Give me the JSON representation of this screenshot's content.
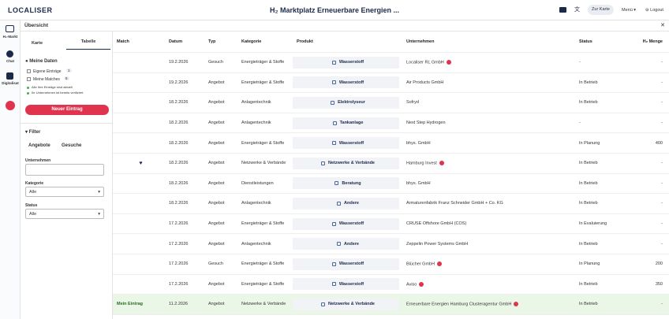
{
  "header": {
    "logo": "LOCALISER",
    "title": "H₂ Marktplatz Erneuerbare Energien ...",
    "map_button": "Zur Karte",
    "menu": "Menü ▾",
    "logout": "Logout"
  },
  "subheader": {
    "title": "Übersicht",
    "close": "✕"
  },
  "rail": [
    "H₂-Markt",
    "Chat",
    "Digitalisat"
  ],
  "panel": {
    "tabs": [
      "Karte",
      "Tabelle"
    ],
    "my_data": "Meine Daten",
    "checks": [
      {
        "label": "Eigene Einträge",
        "count": "1"
      },
      {
        "label": "Meine Matches",
        "count": "5"
      }
    ],
    "notes": [
      "Alle Ihre Einträge sind aktuell",
      "Ihr Unternehmen ist bereits verifiziert"
    ],
    "new_button": "Neuer Eintrag",
    "filter": "Filter",
    "filter_tabs": [
      "Angebote",
      "Gesuche"
    ],
    "company_label": "Unternehmen",
    "category_label": "Kategorie",
    "category_value": "Alle",
    "status_label": "Status",
    "status_value": "Alle"
  },
  "table": {
    "columns": [
      "Match",
      "Datum",
      "Typ",
      "Kategorie",
      "Produkt",
      "Unternehmen",
      "Status",
      "H₂ Menge"
    ],
    "rows": [
      {
        "match": "",
        "date": "19.2.2026",
        "type": "Gesuch",
        "category": "Energieträger & Stoffe",
        "product": "Wasserstoff",
        "company": "Localiser RL GmbH",
        "badge": true,
        "status": "-",
        "amount": "-"
      },
      {
        "match": "",
        "date": "19.2.2026",
        "type": "Angebot",
        "category": "Energieträger & Stoffe",
        "product": "Wasserstoff",
        "company": "Air Products GmbH",
        "badge": false,
        "status": "In Betrieb",
        "amount": "-"
      },
      {
        "match": "",
        "date": "18.2.2026",
        "type": "Angebot",
        "category": "Anlagentechnik",
        "product": "Elektrolyseur",
        "company": "Sofryd",
        "badge": false,
        "status": "In Betrieb",
        "amount": "-"
      },
      {
        "match": "",
        "date": "18.2.2026",
        "type": "Angebot",
        "category": "Anlagentechnik",
        "product": "Tankanlage",
        "company": "Next Step Hydrogen",
        "badge": false,
        "status": "-",
        "amount": "-"
      },
      {
        "match": "",
        "date": "18.2.2026",
        "type": "Angebot",
        "category": "Energieträger & Stoffe",
        "product": "Wasserstoff",
        "company": "bhys. GmbH",
        "badge": false,
        "status": "In Planung",
        "amount": "400"
      },
      {
        "match": "♥",
        "date": "18.2.2026",
        "type": "Angebot",
        "category": "Netzwerke & Verbände",
        "product": "Netzwerke & Verbände",
        "company": "Hamburg Invest",
        "badge": true,
        "status": "In Betrieb",
        "amount": "-"
      },
      {
        "match": "",
        "date": "18.2.2026",
        "type": "Angebot",
        "category": "Dienstleistungen",
        "product": "Beratung",
        "company": "bhys. GmbH",
        "badge": false,
        "status": "In Betrieb",
        "amount": "-"
      },
      {
        "match": "",
        "date": "18.2.2026",
        "type": "Angebot",
        "category": "Anlagentechnik",
        "product": "Andere",
        "company": "Armaturenfabrik Franz Schneider GmbH + Co. KG",
        "badge": false,
        "status": "In Betrieb",
        "amount": "-"
      },
      {
        "match": "",
        "date": "17.2.2026",
        "type": "Angebot",
        "category": "Energieträger & Stoffe",
        "product": "Wasserstoff",
        "company": "CRUSE Offshore GmbH (COS)",
        "badge": false,
        "status": "In Evaluierung",
        "amount": "-"
      },
      {
        "match": "",
        "date": "17.2.2026",
        "type": "Angebot",
        "category": "Anlagentechnik",
        "product": "Andere",
        "company": "Zeppelin Power Systems GmbH",
        "badge": false,
        "status": "In Betrieb",
        "amount": "-"
      },
      {
        "match": "",
        "date": "17.2.2026",
        "type": "Gesuch",
        "category": "Energieträger & Stoffe",
        "product": "Wasserstoff",
        "company": "Blücher GmbH",
        "badge": true,
        "status": "In Planung",
        "amount": "200"
      },
      {
        "match": "",
        "date": "17.2.2026",
        "type": "Angebot",
        "category": "Energieträger & Stoffe",
        "product": "Wasserstoff",
        "company": "Aviso",
        "badge": true,
        "status": "In Betrieb",
        "amount": "350"
      },
      {
        "match": "Mein Eintrag",
        "date": "11.2.2026",
        "type": "Angebot",
        "category": "Netzwerke & Verbände",
        "product": "Netzwerke & Verbände",
        "company": "Erneuerbare Energien Hamburg Clusteragentur GmbH",
        "badge": true,
        "status": "In Betrieb",
        "amount": "-"
      }
    ]
  }
}
